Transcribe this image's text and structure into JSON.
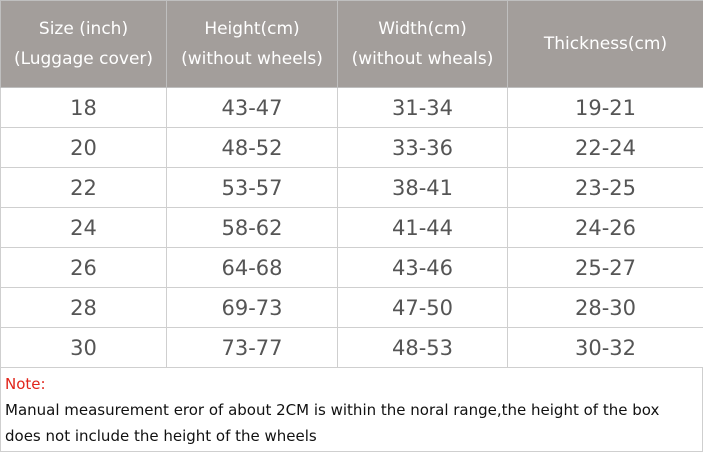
{
  "table": {
    "headers": [
      [
        "Size (inch)",
        "(Luggage cover)"
      ],
      [
        "Height(cm)",
        "(without wheels)"
      ],
      [
        "Width(cm)",
        "(without wheals)"
      ],
      [
        "Thickness(cm)"
      ]
    ],
    "rows": [
      [
        "18",
        "43-47",
        "31-34",
        "19-21"
      ],
      [
        "20",
        "48-52",
        "33-36",
        "22-24"
      ],
      [
        "22",
        "53-57",
        "38-41",
        "23-25"
      ],
      [
        "24",
        "58-62",
        "41-44",
        "24-26"
      ],
      [
        "26",
        "64-68",
        "43-46",
        "25-27"
      ],
      [
        "28",
        "69-73",
        "47-50",
        "28-30"
      ],
      [
        "30",
        "73-77",
        "48-53",
        "30-32"
      ]
    ]
  },
  "note": {
    "title": "Note:",
    "text_line1": "Manual measurement eror of about 2CM is within the noral range,the height of the box",
    "text_line2": "does not include the height of the wheels"
  },
  "colors": {
    "header_bg": "#a39e9b",
    "header_text": "#ffffff",
    "cell_text": "#555555",
    "note_title": "#e1251b"
  }
}
